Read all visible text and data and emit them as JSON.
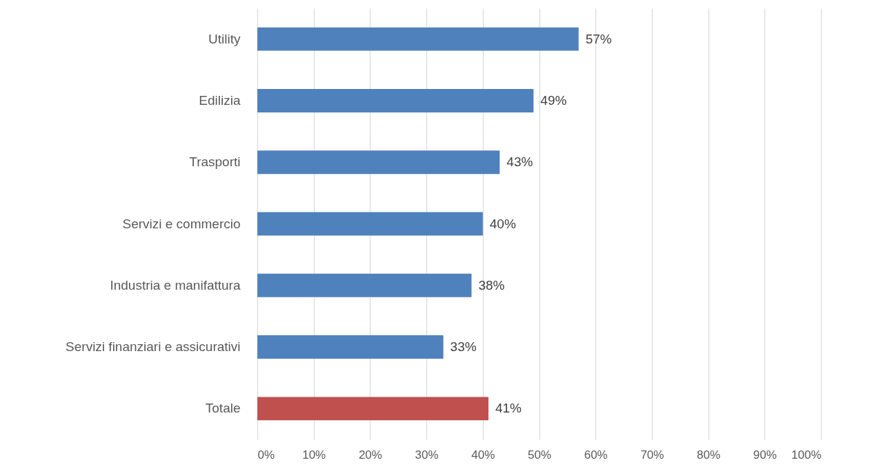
{
  "chart_data": {
    "type": "bar",
    "orientation": "horizontal",
    "categories": [
      "Utility",
      "Edilizia",
      "Trasporti",
      "Servizi e commercio",
      "Industria e manifattura",
      "Servizi finanziari e assicurativi",
      "Totale"
    ],
    "values": [
      57,
      49,
      43,
      40,
      38,
      33,
      41
    ],
    "colors": [
      "#4f81bd",
      "#4f81bd",
      "#4f81bd",
      "#4f81bd",
      "#4f81bd",
      "#4f81bd",
      "#c0504d"
    ],
    "value_labels": [
      "57%",
      "49%",
      "43%",
      "40%",
      "38%",
      "33%",
      "41%"
    ],
    "xlim": [
      0,
      100
    ],
    "xticks": [
      {
        "value": 0,
        "label": "0%"
      },
      {
        "value": 10,
        "label": "10%"
      },
      {
        "value": 20,
        "label": "20%"
      },
      {
        "value": 30,
        "label": "30%"
      },
      {
        "value": 40,
        "label": "40%"
      },
      {
        "value": 50,
        "label": "50%"
      },
      {
        "value": 60,
        "label": "60%"
      },
      {
        "value": 70,
        "label": "70%"
      },
      {
        "value": 80,
        "label": "80%"
      },
      {
        "value": 90,
        "label": "90%"
      },
      {
        "value": 100,
        "label": "100%"
      }
    ],
    "grid": "x"
  }
}
